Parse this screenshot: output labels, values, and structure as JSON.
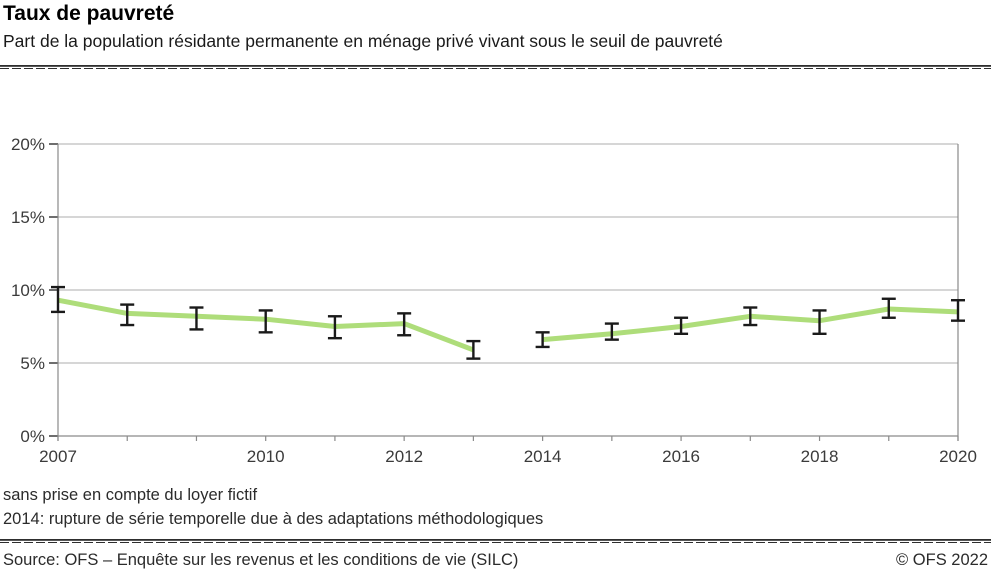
{
  "header": {
    "title": "Taux de pauvreté",
    "subtitle": "Part de la population résidante permanente en ménage privé vivant sous le seuil de pauvreté"
  },
  "footnotes": [
    "sans prise en compte du loyer fictif",
    "2014: rupture de série temporelle due à des adaptations méthodologiques"
  ],
  "footer": {
    "source": "Source: OFS – Enquête sur les revenus et les conditions de vie (SILC)",
    "copyright": "© OFS 2022"
  },
  "chart_data": {
    "type": "line",
    "title": "Taux de pauvreté",
    "x": [
      2007,
      2008,
      2009,
      2010,
      2011,
      2012,
      2013,
      2014,
      2015,
      2016,
      2017,
      2018,
      2019,
      2020
    ],
    "series": [
      {
        "name": "Taux de pauvreté, sans prise en compte du loyer fictif",
        "values": [
          9.3,
          8.4,
          8.2,
          8.0,
          7.5,
          7.7,
          5.9,
          6.6,
          7.0,
          7.5,
          8.2,
          7.9,
          8.7,
          8.5
        ],
        "ci_low": [
          8.5,
          7.6,
          7.3,
          7.1,
          6.7,
          6.9,
          5.3,
          6.1,
          6.6,
          7.0,
          7.6,
          7.0,
          8.1,
          7.9
        ],
        "ci_high": [
          10.2,
          9.0,
          8.8,
          8.6,
          8.2,
          8.4,
          6.5,
          7.1,
          7.7,
          8.1,
          8.8,
          8.6,
          9.4,
          9.3
        ]
      }
    ],
    "series_break_after_x": 2013,
    "x_tick_labels": [
      "2007",
      "2010",
      "2012",
      "2014",
      "2016",
      "2018",
      "2020"
    ],
    "ylim": [
      0,
      20
    ],
    "y_ticks": [
      0,
      5,
      10,
      15,
      20
    ],
    "y_tick_suffix": "%",
    "grid": true,
    "legend": "none",
    "line_color": "#aedd7a",
    "errorbar_color": "#1a1a1a",
    "grid_color": "#bdbdbd",
    "axis_color": "#8a8a8a",
    "label_color": "#3b3b3b"
  }
}
